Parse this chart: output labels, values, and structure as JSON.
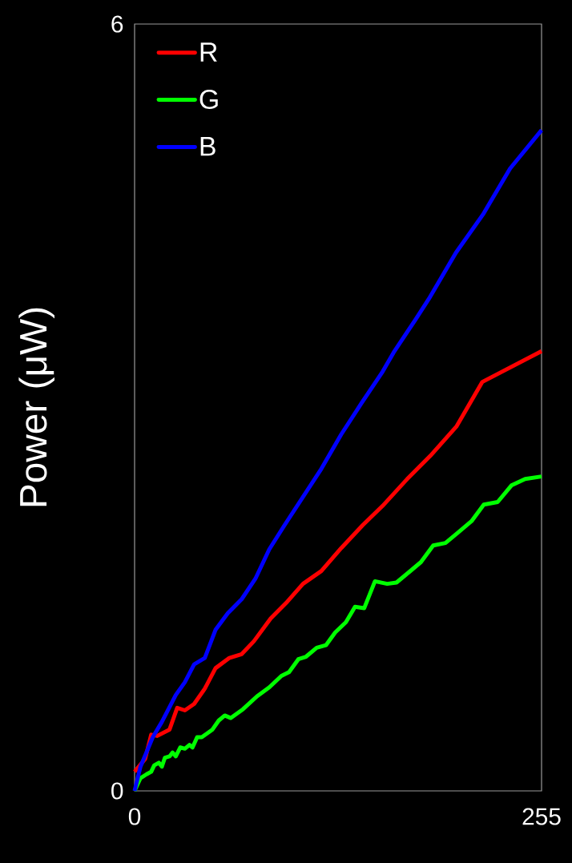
{
  "chart_data": {
    "type": "line",
    "ylabel": "Power (μW)",
    "xlim": [
      0,
      255
    ],
    "ylim": [
      0,
      6
    ],
    "xticks": [
      0,
      255
    ],
    "yticks": [
      0,
      6
    ],
    "legend": "top left",
    "series": [
      {
        "name": "R",
        "color": "#ff0000",
        "x": [
          0,
          6.6,
          10.4,
          14.2,
          21.9,
          26.7,
          31.5,
          37.3,
          44.0,
          50.7,
          59.4,
          67.1,
          74.7,
          85.3,
          94.9,
          105.5,
          117,
          129.5,
          143,
          155.4,
          170.8,
          185.2,
          201.6,
          217.9,
          255
        ],
        "values": [
          0.15,
          0.25,
          0.44,
          0.43,
          0.48,
          0.65,
          0.63,
          0.68,
          0.8,
          0.96,
          1.04,
          1.07,
          1.17,
          1.35,
          1.47,
          1.62,
          1.72,
          1.9,
          2.08,
          2.23,
          2.44,
          2.62,
          2.85,
          3.2,
          3.44
        ]
      },
      {
        "name": "G",
        "color": "#00ff00",
        "x": [
          0,
          3.7,
          7.5,
          10.4,
          12.3,
          15.2,
          17.1,
          19.0,
          21.9,
          23.8,
          25.8,
          28.6,
          31.5,
          34.4,
          36.3,
          39.2,
          42.1,
          48.8,
          52.7,
          56.5,
          60.3,
          68.0,
          76.7,
          84.4,
          92.0,
          96.8,
          102.6,
          107.4,
          114.1,
          119.9,
          125.7,
          132.4,
          138.1,
          143.9,
          150.6,
          158.3,
          164.1,
          171.8,
          179.4,
          187.1,
          194.8,
          202.5,
          211.1,
          218.8,
          227.5,
          236.1,
          244.7,
          255
        ],
        "values": [
          0,
          0.1,
          0.13,
          0.15,
          0.2,
          0.22,
          0.19,
          0.26,
          0.27,
          0.3,
          0.27,
          0.34,
          0.33,
          0.36,
          0.34,
          0.42,
          0.42,
          0.48,
          0.55,
          0.59,
          0.57,
          0.64,
          0.74,
          0.81,
          0.9,
          0.93,
          1.03,
          1.05,
          1.12,
          1.14,
          1.24,
          1.32,
          1.44,
          1.43,
          1.64,
          1.62,
          1.63,
          1.71,
          1.79,
          1.92,
          1.94,
          2.02,
          2.11,
          2.24,
          2.26,
          2.39,
          2.44,
          2.46
        ]
      },
      {
        "name": "B",
        "color": "#0000ff",
        "x": [
          0,
          3.7,
          11.4,
          17.1,
          25.8,
          31.5,
          37.3,
          44.0,
          50.7,
          58.4,
          67.1,
          75.7,
          84.4,
          94.0,
          105.5,
          117.0,
          129.5,
          142.0,
          155.4,
          162.3,
          175.6,
          184.4,
          201.3,
          218.3,
          235.3,
          255
        ],
        "values": [
          0,
          0.19,
          0.42,
          0.54,
          0.75,
          0.85,
          0.99,
          1.04,
          1.26,
          1.39,
          1.5,
          1.66,
          1.89,
          2.08,
          2.3,
          2.52,
          2.79,
          3.03,
          3.28,
          3.43,
          3.68,
          3.85,
          4.21,
          4.51,
          4.87,
          5.17
        ]
      }
    ]
  }
}
